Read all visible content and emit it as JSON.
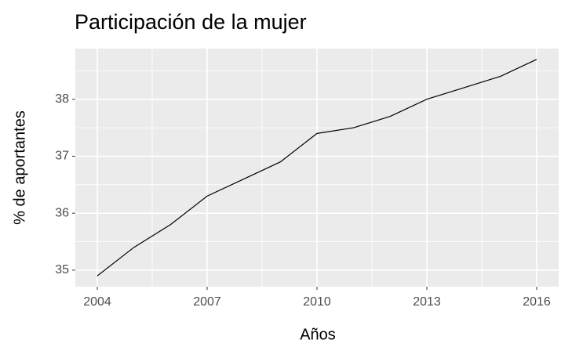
{
  "chart_data": {
    "type": "line",
    "title": "Participación de la mujer",
    "x_label": "Años",
    "y_label": "% de aportantes",
    "x": [
      2004,
      2005,
      2006,
      2007,
      2008,
      2009,
      2010,
      2011,
      2012,
      2013,
      2014,
      2015,
      2016
    ],
    "series": [
      {
        "color": "#000000",
        "values": [
          34.9,
          35.4,
          35.8,
          36.3,
          36.6,
          36.9,
          37.4,
          37.5,
          37.7,
          38.0,
          38.2,
          38.4,
          38.7
        ]
      }
    ],
    "xlim": [
      2003.4,
      2016.6
    ],
    "xticks": [
      2004,
      2007,
      2010,
      2013,
      2016
    ],
    "x_minor_ticks": [
      2005.5,
      2008.5,
      2011.5,
      2014.5
    ],
    "ylim": [
      34.71,
      38.89
    ],
    "yticks": [
      35,
      36,
      37,
      38
    ],
    "y_minor_ticks": [
      35.5,
      36.5,
      37.5,
      38.5
    ],
    "grid": true
  }
}
